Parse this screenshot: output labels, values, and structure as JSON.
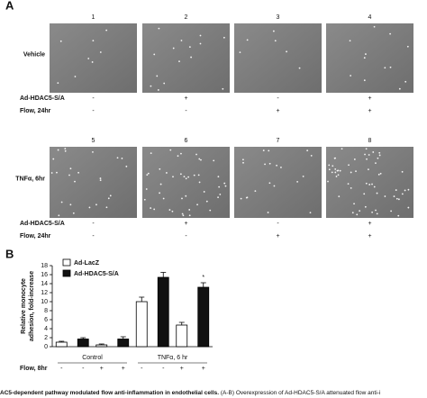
{
  "panel_a": {
    "label": "A",
    "top": {
      "numbers": [
        "1",
        "2",
        "3",
        "4"
      ],
      "condition": "Vehicle",
      "rows": [
        {
          "name": "Ad-HDAC5-S/A",
          "marks": [
            "-",
            "+",
            "-",
            "+"
          ]
        },
        {
          "name": "Flow, 24hr",
          "marks": [
            "-",
            "-",
            "+",
            "+"
          ]
        }
      ]
    },
    "bottom": {
      "numbers": [
        "5",
        "6",
        "7",
        "8"
      ],
      "condition": "TNFα, 6hr",
      "rows": [
        {
          "name": "Ad-HDAC5-S/A",
          "marks": [
            "-",
            "+",
            "-",
            "+"
          ]
        },
        {
          "name": "Flow, 24hr",
          "marks": [
            "-",
            "-",
            "+",
            "+"
          ]
        }
      ]
    }
  },
  "chart_data": {
    "type": "bar",
    "label": "B",
    "y_label": "Relative monocyte adhesion, fold-increase",
    "categories": [
      null,
      null,
      null,
      null
    ],
    "groups": [
      "Control",
      "TNFα, 6 hr"
    ],
    "flow_label": "Flow, 8hr",
    "flow_marks": [
      "-",
      "-",
      "+",
      "+",
      "-",
      "-",
      "+",
      "+"
    ],
    "series": [
      {
        "name": "Ad-LacZ",
        "color": "#ffffff",
        "values": [
          1.0,
          0.4,
          10.0,
          4.8
        ],
        "errors": [
          0.2,
          0.2,
          1.0,
          0.6
        ]
      },
      {
        "name": "Ad-HDAC5-S/A",
        "color": "#111111",
        "values": [
          1.7,
          1.7,
          15.4,
          13.2
        ],
        "errors": [
          0.3,
          0.5,
          1.1,
          1.0
        ]
      }
    ],
    "annotation": "*",
    "ylim": [
      0,
      18
    ],
    "yticks": [
      0,
      2,
      4,
      6,
      8,
      10,
      12,
      14,
      16,
      18
    ]
  },
  "caption": {
    "bold": "AC5-dependent pathway modulated flow anti-inflammation in endothelial cells.",
    "text": "(A-B) Overexpression of Ad-HDAC5-S/A attenuated flow anti-i"
  }
}
